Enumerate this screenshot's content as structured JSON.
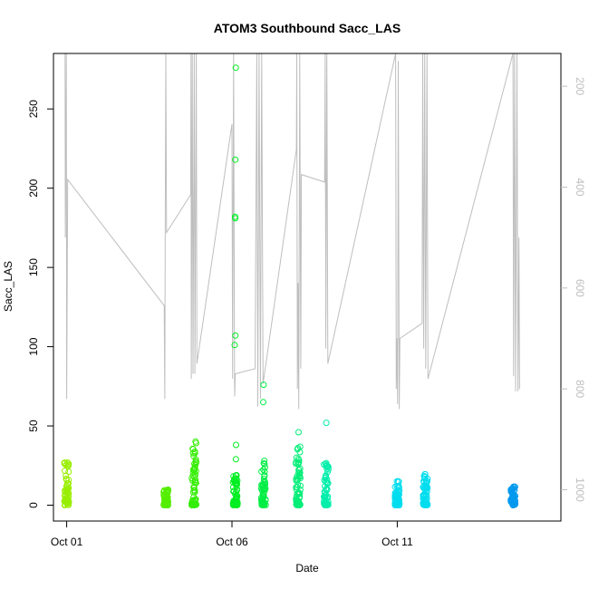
{
  "chart_data": {
    "type": "scatter",
    "title": "ATOM3 Southbound Sacc_LAS",
    "xlabel": "Date",
    "ylabel": "Sacc_LAS",
    "x_ticks": [
      "Oct 01",
      "Oct 06",
      "Oct 11"
    ],
    "x_tick_days": [
      1,
      6,
      11
    ],
    "xlim_days": [
      0.6,
      15.95
    ],
    "ylim": [
      -10,
      285
    ],
    "y_ticks": [
      0,
      50,
      100,
      150,
      200,
      250
    ],
    "y_right_ticks": [
      200,
      400,
      600,
      800,
      1000
    ],
    "y_right_lim": [
      135,
      1062
    ],
    "grid": false,
    "legend": "none",
    "colors": {
      "axis": "#000000",
      "right_axis": "#bebebe",
      "trace": "#bebebe"
    },
    "clusters": [
      {
        "day": 1.0,
        "color": "#99ee00",
        "ymax": 31,
        "outliers": []
      },
      {
        "day": 4.0,
        "color": "#55ee00",
        "ymax": 10,
        "outliers": []
      },
      {
        "day": 4.85,
        "color": "#33ee00",
        "ymax": 41,
        "outliers": []
      },
      {
        "day": 6.1,
        "color": "#00ee22",
        "ymax": 20,
        "outliers": [
          38,
          29,
          101,
          107,
          181,
          182,
          218,
          276
        ]
      },
      {
        "day": 6.95,
        "color": "#00ee44",
        "ymax": 29,
        "outliers": [
          65,
          76
        ]
      },
      {
        "day": 8.0,
        "color": "#00ee77",
        "ymax": 37,
        "outliers": [
          46
        ]
      },
      {
        "day": 8.85,
        "color": "#00eeaa",
        "ymax": 28,
        "outliers": [
          52
        ]
      },
      {
        "day": 11.0,
        "color": "#00ddee",
        "ymax": 16,
        "outliers": []
      },
      {
        "day": 11.85,
        "color": "#00ddee",
        "ymax": 20,
        "outliers": []
      },
      {
        "day": 14.5,
        "color": "#0099ee",
        "ymax": 12,
        "outliers": []
      }
    ],
    "right_axis_trace": [
      {
        "day": 0.95,
        "depth": 135
      },
      {
        "day": 0.96,
        "depth": 500
      },
      {
        "day": 0.99,
        "depth": 135
      },
      {
        "day": 1.0,
        "depth": 820
      },
      {
        "day": 1.03,
        "depth": 385
      },
      {
        "day": 3.95,
        "depth": 635
      },
      {
        "day": 3.97,
        "depth": 820
      },
      {
        "day": 3.98,
        "depth": 505
      },
      {
        "day": 4.0,
        "depth": 135
      },
      {
        "day": 4.02,
        "depth": 490
      },
      {
        "day": 4.75,
        "depth": 415
      },
      {
        "day": 4.76,
        "depth": 135
      },
      {
        "day": 4.77,
        "depth": 780
      },
      {
        "day": 4.8,
        "depth": 135
      },
      {
        "day": 4.82,
        "depth": 770
      },
      {
        "day": 4.86,
        "depth": 135
      },
      {
        "day": 4.88,
        "depth": 770
      },
      {
        "day": 4.92,
        "depth": 135
      },
      {
        "day": 4.94,
        "depth": 750
      },
      {
        "day": 6.0,
        "depth": 275
      },
      {
        "day": 6.02,
        "depth": 780
      },
      {
        "day": 6.05,
        "depth": 135
      },
      {
        "day": 6.08,
        "depth": 815
      },
      {
        "day": 6.1,
        "depth": 770
      },
      {
        "day": 6.7,
        "depth": 760
      },
      {
        "day": 6.75,
        "depth": 135
      },
      {
        "day": 6.78,
        "depth": 835
      },
      {
        "day": 6.82,
        "depth": 135
      },
      {
        "day": 6.86,
        "depth": 820
      },
      {
        "day": 6.9,
        "depth": 135
      },
      {
        "day": 6.94,
        "depth": 790
      },
      {
        "day": 7.95,
        "depth": 325
      },
      {
        "day": 7.96,
        "depth": 135
      },
      {
        "day": 7.98,
        "depth": 800
      },
      {
        "day": 8.0,
        "depth": 590
      },
      {
        "day": 8.02,
        "depth": 840
      },
      {
        "day": 8.05,
        "depth": 135
      },
      {
        "day": 8.08,
        "depth": 760
      },
      {
        "day": 8.1,
        "depth": 375
      },
      {
        "day": 8.8,
        "depth": 390
      },
      {
        "day": 8.82,
        "depth": 135
      },
      {
        "day": 8.84,
        "depth": 720
      },
      {
        "day": 8.87,
        "depth": 135
      },
      {
        "day": 8.9,
        "depth": 750
      },
      {
        "day": 10.95,
        "depth": 135
      },
      {
        "day": 10.97,
        "depth": 800
      },
      {
        "day": 10.99,
        "depth": 700
      },
      {
        "day": 11.01,
        "depth": 830
      },
      {
        "day": 11.03,
        "depth": 150
      },
      {
        "day": 11.06,
        "depth": 840
      },
      {
        "day": 11.08,
        "depth": 700
      },
      {
        "day": 11.75,
        "depth": 670
      },
      {
        "day": 11.77,
        "depth": 135
      },
      {
        "day": 11.8,
        "depth": 720
      },
      {
        "day": 11.83,
        "depth": 135
      },
      {
        "day": 11.86,
        "depth": 760
      },
      {
        "day": 11.9,
        "depth": 135
      },
      {
        "day": 11.93,
        "depth": 780
      },
      {
        "day": 14.5,
        "depth": 135
      },
      {
        "day": 14.52,
        "depth": 775
      },
      {
        "day": 14.55,
        "depth": 135
      },
      {
        "day": 14.58,
        "depth": 805
      },
      {
        "day": 14.62,
        "depth": 135
      },
      {
        "day": 14.65,
        "depth": 805
      },
      {
        "day": 14.68,
        "depth": 500
      },
      {
        "day": 14.7,
        "depth": 800
      }
    ]
  }
}
